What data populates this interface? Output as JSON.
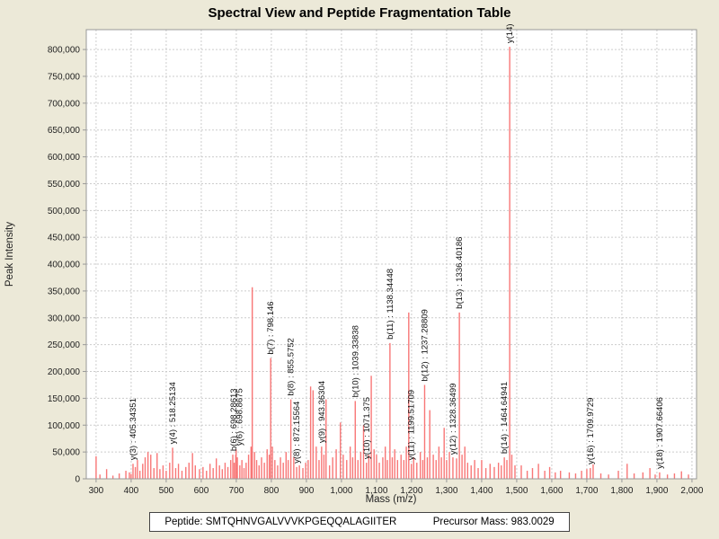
{
  "title": "Spectral View and Peptide Fragmentation Table",
  "footer": {
    "peptide_label": "Peptide:",
    "peptide_value": "SMTQHNVGALVVVKPGEQQALAGIITER",
    "precursor_label": "Precursor Mass:",
    "precursor_value": "983.0029"
  },
  "colors": {
    "background": "#ECE9D8",
    "plot_bg": "#FFFFFF",
    "peak": "#F87676",
    "grid": "#CCCCCC",
    "border": "#999999",
    "tick_text": "#222222",
    "label_text": "#111111"
  },
  "chart_data": {
    "type": "bar",
    "title": "Spectral View and Peptide Fragmentation Table",
    "xlabel": "Mass (m/z)",
    "ylabel": "Peak Intensity",
    "xlim": [
      272,
      2013
    ],
    "ylim": [
      0,
      837000
    ],
    "grid": "dashed",
    "legend": "none",
    "x_ticks": {
      "values": [
        300,
        400,
        500,
        600,
        700,
        800,
        900,
        1000,
        1100,
        1200,
        1300,
        1400,
        1500,
        1600,
        1700,
        1800,
        1900,
        2000
      ],
      "labels": [
        "300",
        "400",
        "500",
        "600",
        "700",
        "800",
        "900",
        "1,000",
        "1,100",
        "1,200",
        "1,300",
        "1,400",
        "1,500",
        "1,600",
        "1,700",
        "1,800",
        "1,900",
        "2,000"
      ]
    },
    "y_ticks": {
      "values": [
        0,
        50000,
        100000,
        150000,
        200000,
        250000,
        300000,
        350000,
        400000,
        450000,
        500000,
        550000,
        600000,
        650000,
        700000,
        750000,
        800000
      ],
      "labels": [
        "0",
        "50,000",
        "100,000",
        "150,000",
        "200,000",
        "250,000",
        "300,000",
        "350,000",
        "400,000",
        "450,000",
        "500,000",
        "550,000",
        "600,000",
        "650,000",
        "700,000",
        "750,000",
        "800,000"
      ]
    },
    "peak_labels": [
      {
        "text": "y(3) : 405.34351",
        "mz": 405.34,
        "intensity": 28000
      },
      {
        "text": "y(4) : 518.25134",
        "mz": 518.25,
        "intensity": 58000
      },
      {
        "text": "b(6) : 698.28613",
        "mz": 698.29,
        "intensity": 45000,
        "dx": -2
      },
      {
        "text": "y(6) : 698.8675",
        "mz": 698.87,
        "intensity": 55000,
        "dx": 4
      },
      {
        "text": "b(7) : 798.146",
        "mz": 798.15,
        "intensity": 225000
      },
      {
        "text": "b(8) : 855.5752",
        "mz": 855.58,
        "intensity": 148000
      },
      {
        "text": "y(8) : 872.15564",
        "mz": 872.16,
        "intensity": 22000
      },
      {
        "text": "y(9) : 943.36304",
        "mz": 943.36,
        "intensity": 60000
      },
      {
        "text": "b(10) : 1039.33838",
        "mz": 1039.34,
        "intensity": 145000
      },
      {
        "text": "y(10) : 1071.375",
        "mz": 1071.38,
        "intensity": 30000
      },
      {
        "text": "b(11) : 1138.34448",
        "mz": 1138.34,
        "intensity": 253000
      },
      {
        "text": "y(11) : 1199.51709",
        "mz": 1199.52,
        "intensity": 28000
      },
      {
        "text": "b(12) : 1237.28809",
        "mz": 1237.29,
        "intensity": 175000
      },
      {
        "text": "y(12) : 1328.36499",
        "mz": 1328.36,
        "intensity": 38000,
        "dx": -4
      },
      {
        "text": "b(13) : 1336.40186",
        "mz": 1336.4,
        "intensity": 310000
      },
      {
        "text": "b(14) : 1464.64941",
        "mz": 1464.65,
        "intensity": 40000
      },
      {
        "text": "y(14)",
        "mz": 1480.0,
        "intensity": 805000
      },
      {
        "text": "y(16) : 1709.9729",
        "mz": 1709.97,
        "intensity": 20000
      },
      {
        "text": "y(18) : 1907.66406",
        "mz": 1907.66,
        "intensity": 12000
      }
    ],
    "peaks": [
      [
        300,
        42000
      ],
      [
        311,
        8000
      ],
      [
        330,
        18000
      ],
      [
        348,
        6000
      ],
      [
        366,
        10000
      ],
      [
        385,
        15000
      ],
      [
        395,
        12000
      ],
      [
        400,
        9000
      ],
      [
        405.34,
        28000
      ],
      [
        412,
        22000
      ],
      [
        418,
        35000
      ],
      [
        425,
        15000
      ],
      [
        433,
        28000
      ],
      [
        440,
        40000
      ],
      [
        448,
        50000
      ],
      [
        456,
        45000
      ],
      [
        465,
        20000
      ],
      [
        474,
        48000
      ],
      [
        482,
        18000
      ],
      [
        491,
        25000
      ],
      [
        500,
        15000
      ],
      [
        510,
        30000
      ],
      [
        518.25,
        58000
      ],
      [
        527,
        20000
      ],
      [
        535,
        28000
      ],
      [
        545,
        15000
      ],
      [
        556,
        22000
      ],
      [
        565,
        30000
      ],
      [
        575,
        48000
      ],
      [
        583,
        25000
      ],
      [
        595,
        18000
      ],
      [
        605,
        22000
      ],
      [
        615,
        15000
      ],
      [
        625,
        28000
      ],
      [
        634,
        20000
      ],
      [
        643,
        38000
      ],
      [
        652,
        25000
      ],
      [
        660,
        18000
      ],
      [
        668,
        30000
      ],
      [
        676,
        22000
      ],
      [
        684,
        35000
      ],
      [
        690,
        45000
      ],
      [
        694,
        30000
      ],
      [
        698.29,
        45000
      ],
      [
        699.5,
        55000
      ],
      [
        703,
        40000
      ],
      [
        710,
        25000
      ],
      [
        716,
        35000
      ],
      [
        722,
        20000
      ],
      [
        728,
        30000
      ],
      [
        735,
        45000
      ],
      [
        742,
        60000
      ],
      [
        745.5,
        357000
      ],
      [
        752,
        50000
      ],
      [
        758,
        35000
      ],
      [
        765,
        25000
      ],
      [
        772,
        40000
      ],
      [
        780,
        30000
      ],
      [
        788,
        55000
      ],
      [
        794,
        45000
      ],
      [
        798.15,
        225000
      ],
      [
        803,
        60000
      ],
      [
        810,
        35000
      ],
      [
        818,
        25000
      ],
      [
        826,
        40000
      ],
      [
        834,
        30000
      ],
      [
        842,
        50000
      ],
      [
        848,
        35000
      ],
      [
        855.58,
        148000
      ],
      [
        864,
        40000
      ],
      [
        872.16,
        22000
      ],
      [
        880,
        25000
      ],
      [
        890,
        20000
      ],
      [
        898,
        30000
      ],
      [
        905,
        35000
      ],
      [
        912,
        172000
      ],
      [
        919,
        165000
      ],
      [
        928,
        60000
      ],
      [
        936,
        35000
      ],
      [
        943.36,
        60000
      ],
      [
        950,
        45000
      ],
      [
        956,
        148000
      ],
      [
        966,
        25000
      ],
      [
        975,
        40000
      ],
      [
        985,
        55000
      ],
      [
        997,
        105000
      ],
      [
        1005,
        45000
      ],
      [
        1015,
        35000
      ],
      [
        1025,
        60000
      ],
      [
        1032,
        40000
      ],
      [
        1039.34,
        145000
      ],
      [
        1047,
        35000
      ],
      [
        1055,
        50000
      ],
      [
        1063,
        100000
      ],
      [
        1071.38,
        30000
      ],
      [
        1078,
        45000
      ],
      [
        1085,
        192000
      ],
      [
        1093,
        55000
      ],
      [
        1100,
        45000
      ],
      [
        1108,
        30000
      ],
      [
        1118,
        40000
      ],
      [
        1125,
        60000
      ],
      [
        1131,
        35000
      ],
      [
        1138.34,
        253000
      ],
      [
        1145,
        40000
      ],
      [
        1152,
        55000
      ],
      [
        1160,
        35000
      ],
      [
        1170,
        45000
      ],
      [
        1178,
        35000
      ],
      [
        1185,
        60000
      ],
      [
        1192,
        310000
      ],
      [
        1199.52,
        28000
      ],
      [
        1206,
        40000
      ],
      [
        1215,
        30000
      ],
      [
        1225,
        50000
      ],
      [
        1232,
        35000
      ],
      [
        1237.29,
        175000
      ],
      [
        1245,
        40000
      ],
      [
        1252,
        128000
      ],
      [
        1262,
        45000
      ],
      [
        1270,
        35000
      ],
      [
        1278,
        60000
      ],
      [
        1285,
        40000
      ],
      [
        1293,
        95000
      ],
      [
        1300,
        35000
      ],
      [
        1308,
        50000
      ],
      [
        1318,
        40000
      ],
      [
        1328.36,
        38000
      ],
      [
        1336.4,
        310000
      ],
      [
        1344,
        45000
      ],
      [
        1352,
        60000
      ],
      [
        1360,
        30000
      ],
      [
        1370,
        25000
      ],
      [
        1380,
        35000
      ],
      [
        1390,
        20000
      ],
      [
        1400,
        35000
      ],
      [
        1412,
        20000
      ],
      [
        1424,
        28000
      ],
      [
        1436,
        22000
      ],
      [
        1448,
        30000
      ],
      [
        1456,
        25000
      ],
      [
        1464.65,
        40000
      ],
      [
        1472,
        35000
      ],
      [
        1480,
        805000
      ],
      [
        1486,
        45000
      ],
      [
        1495,
        25000
      ],
      [
        1513,
        25000
      ],
      [
        1530,
        15000
      ],
      [
        1545,
        20000
      ],
      [
        1562,
        28000
      ],
      [
        1580,
        15000
      ],
      [
        1594,
        22000
      ],
      [
        1610,
        12000
      ],
      [
        1625,
        15000
      ],
      [
        1650,
        12000
      ],
      [
        1668,
        10000
      ],
      [
        1685,
        15000
      ],
      [
        1700,
        18000
      ],
      [
        1709.97,
        20000
      ],
      [
        1718,
        27000
      ],
      [
        1740,
        10000
      ],
      [
        1762,
        8000
      ],
      [
        1790,
        15000
      ],
      [
        1815,
        28000
      ],
      [
        1835,
        10000
      ],
      [
        1860,
        12000
      ],
      [
        1880,
        20000
      ],
      [
        1895,
        8000
      ],
      [
        1907.66,
        12000
      ],
      [
        1930,
        8000
      ],
      [
        1950,
        10000
      ],
      [
        1970,
        14000
      ],
      [
        1990,
        8000
      ]
    ]
  }
}
